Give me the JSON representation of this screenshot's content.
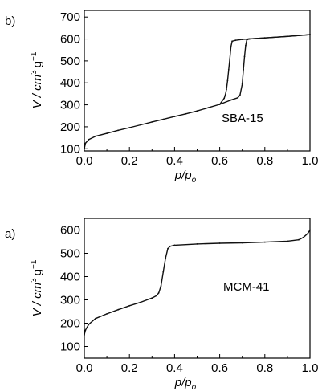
{
  "chart_data": [
    {
      "panel_label": "b)",
      "type": "line",
      "annotation": "SBA-15",
      "xlabel": "p/p",
      "xlabel_sub": "o",
      "ylabel": "V / cm",
      "ylabel_sup": "3",
      "ylabel_unit": "g",
      "ylabel_unit_sup": "−1",
      "xlim": [
        0,
        1.0
      ],
      "ylim": [
        90,
        730
      ],
      "xticks": [
        "0.0",
        "0.2",
        "0.4",
        "0.6",
        "0.8",
        "1.0"
      ],
      "yticks": [
        "100",
        "200",
        "300",
        "400",
        "500",
        "600",
        "700"
      ],
      "series": [
        {
          "role": "adsorption",
          "x": [
            0.0,
            0.005,
            0.02,
            0.05,
            0.1,
            0.15,
            0.2,
            0.25,
            0.3,
            0.35,
            0.4,
            0.45,
            0.5,
            0.55,
            0.6,
            0.65,
            0.68,
            0.69,
            0.7,
            0.705,
            0.71,
            0.715,
            0.72,
            0.73,
            0.8,
            0.9,
            1.0
          ],
          "y": [
            100,
            125,
            142,
            157,
            170,
            184,
            196,
            209,
            222,
            234,
            247,
            259,
            272,
            287,
            302,
            322,
            332,
            345,
            395,
            460,
            520,
            570,
            595,
            600,
            605,
            612,
            620
          ]
        },
        {
          "role": "desorption",
          "x": [
            1.0,
            0.9,
            0.8,
            0.73,
            0.7,
            0.67,
            0.655,
            0.65,
            0.645,
            0.64,
            0.635,
            0.63,
            0.625,
            0.62,
            0.6
          ],
          "y": [
            620,
            612,
            605,
            600,
            598,
            594,
            590,
            565,
            510,
            460,
            410,
            370,
            345,
            330,
            302
          ]
        }
      ]
    },
    {
      "panel_label": "a)",
      "type": "line",
      "annotation": "MCM-41",
      "xlabel": "p/p",
      "xlabel_sub": "o",
      "ylabel": "V / cm",
      "ylabel_sup": "3",
      "ylabel_unit": "g",
      "ylabel_unit_sup": "−1",
      "xlim": [
        0,
        1.0
      ],
      "ylim": [
        50,
        650
      ],
      "xticks": [
        "0.0",
        "0.2",
        "0.4",
        "0.6",
        "0.8",
        "1.0"
      ],
      "yticks": [
        "100",
        "200",
        "300",
        "400",
        "500",
        "600"
      ],
      "series": [
        {
          "role": "adsorption",
          "x": [
            0.0,
            0.005,
            0.02,
            0.05,
            0.1,
            0.15,
            0.2,
            0.25,
            0.3,
            0.32,
            0.33,
            0.34,
            0.35,
            0.36,
            0.37,
            0.38,
            0.4,
            0.5,
            0.6,
            0.7,
            0.8,
            0.9,
            0.95,
            0.97,
            0.99,
            1.0
          ],
          "y": [
            150,
            170,
            195,
            220,
            240,
            258,
            275,
            290,
            308,
            318,
            330,
            360,
            420,
            480,
            520,
            530,
            535,
            540,
            543,
            545,
            548,
            552,
            558,
            568,
            585,
            600
          ]
        }
      ]
    }
  ]
}
